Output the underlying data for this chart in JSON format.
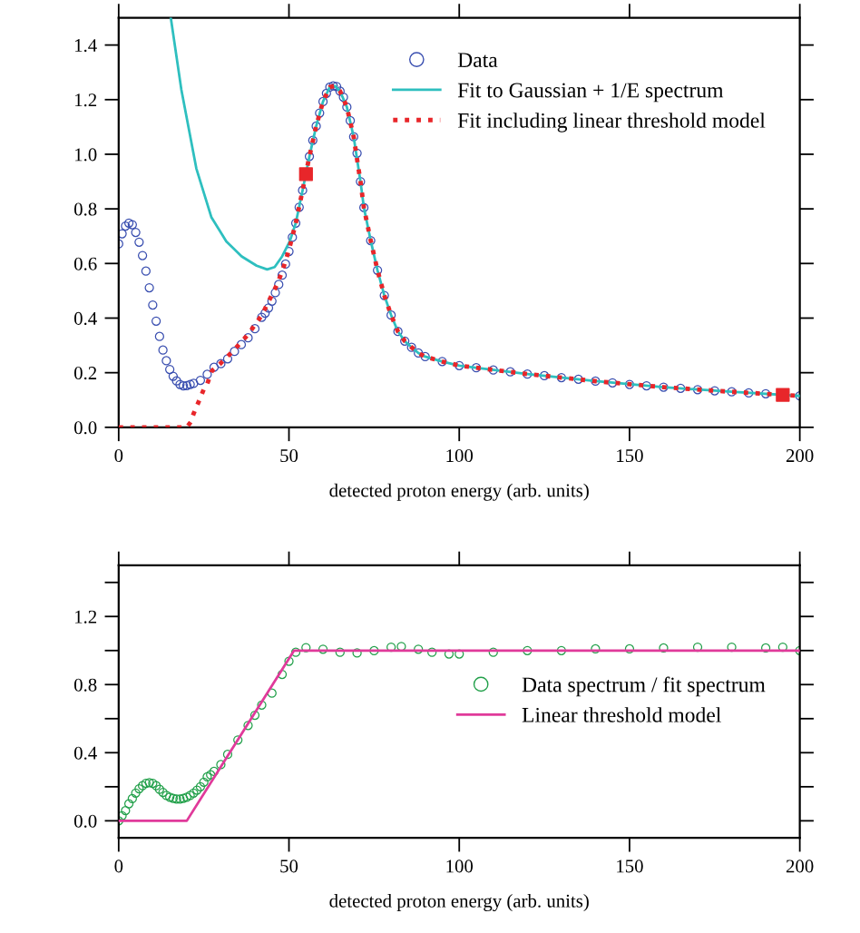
{
  "chart_data": [
    {
      "type": "line",
      "xlabel": "detected proton energy (arb. units)",
      "xlim": [
        0,
        200
      ],
      "xticks": [
        0,
        50,
        100,
        150,
        200
      ],
      "ylim": [
        0,
        1.5
      ],
      "yticks": [
        {
          "value": 0,
          "label": "0.0"
        },
        0.2,
        0.4,
        0.6,
        0.8,
        {
          "value": 1,
          "label": "1.0"
        },
        1.2,
        1.4
      ],
      "legend": "top right",
      "grid": false,
      "series": [
        {
          "name": "Data",
          "type": "scatter",
          "marker": "circle",
          "color": "#3a4fb0",
          "x": [
            0,
            1,
            2,
            3,
            4,
            5,
            6,
            7,
            8,
            9,
            10,
            11,
            12,
            13,
            14,
            15,
            16,
            17,
            18,
            19,
            20,
            21,
            22,
            24,
            26,
            28,
            30,
            32,
            34,
            36,
            38,
            40,
            42,
            43,
            44,
            45,
            46,
            47,
            48,
            49,
            50,
            51,
            52,
            53,
            54,
            55,
            56,
            57,
            58,
            59,
            60,
            61,
            62,
            63,
            64,
            65,
            66,
            67,
            68,
            69,
            70,
            71,
            72,
            74,
            76,
            78,
            80,
            82,
            84,
            86,
            88,
            90,
            95,
            100,
            105,
            110,
            115,
            120,
            125,
            130,
            135,
            140,
            145,
            150,
            155,
            160,
            165,
            170,
            175,
            180,
            185,
            190,
            195,
            200
          ],
          "values": [
            0.672,
            0.709,
            0.737,
            0.748,
            0.742,
            0.714,
            0.678,
            0.629,
            0.572,
            0.511,
            0.448,
            0.389,
            0.333,
            0.283,
            0.244,
            0.212,
            0.187,
            0.17,
            0.157,
            0.152,
            0.153,
            0.157,
            0.161,
            0.172,
            0.194,
            0.22,
            0.233,
            0.251,
            0.278,
            0.303,
            0.328,
            0.361,
            0.403,
            0.418,
            0.437,
            0.462,
            0.493,
            0.523,
            0.557,
            0.598,
            0.644,
            0.696,
            0.748,
            0.806,
            0.868,
            null,
            0.992,
            1.051,
            1.103,
            1.151,
            1.193,
            1.223,
            1.246,
            1.25,
            1.248,
            1.231,
            1.209,
            1.173,
            1.123,
            1.064,
            1.004,
            0.9,
            0.805,
            0.684,
            0.575,
            0.483,
            0.411,
            0.351,
            0.316,
            0.293,
            0.272,
            0.259,
            0.241,
            0.226,
            0.218,
            0.21,
            0.203,
            0.195,
            0.189,
            0.182,
            0.176,
            0.169,
            0.163,
            0.157,
            0.152,
            0.147,
            0.143,
            0.138,
            0.134,
            0.13,
            0.126,
            0.123,
            null,
            0.115
          ]
        },
        {
          "name": "Fit to Gaussian + 1/E spectrum",
          "line_style": "solid",
          "color": "#2ebfbf",
          "x": [
            15.3,
            18.4,
            22.8,
            27.2,
            31.6,
            36.1,
            40.5,
            43.6,
            45.8,
            48,
            50.2,
            52,
            54,
            56,
            58,
            60,
            62,
            63.5,
            65,
            67,
            69,
            71,
            72,
            74,
            76,
            78,
            80,
            82,
            84,
            86,
            88,
            90,
            95,
            100,
            120,
            140,
            160,
            180,
            200
          ],
          "values": [
            1.5,
            1.237,
            0.948,
            0.77,
            0.681,
            0.626,
            0.592,
            0.578,
            0.587,
            0.626,
            0.68,
            0.748,
            0.868,
            0.992,
            1.103,
            1.193,
            1.246,
            1.25,
            1.231,
            1.173,
            1.064,
            0.9,
            0.805,
            0.684,
            0.575,
            0.483,
            0.411,
            0.351,
            0.316,
            0.293,
            0.272,
            0.259,
            0.241,
            0.226,
            0.195,
            0.169,
            0.147,
            0.13,
            0.115
          ]
        },
        {
          "name": "Fit including linear threshold model",
          "line_style": "dotted",
          "color": "#e8262a",
          "x": [
            0,
            20,
            21.2,
            22,
            23.8,
            25,
            26,
            27.4,
            30,
            34,
            38,
            42,
            46,
            48,
            50,
            52,
            54,
            56,
            58,
            60,
            62,
            63.5,
            65,
            67,
            69,
            71,
            72,
            74,
            76,
            78,
            80,
            82,
            84,
            86,
            88,
            90,
            95,
            100,
            120,
            140,
            160,
            180,
            200
          ],
          "values": [
            0,
            0,
            0.02,
            0.05,
            0.103,
            0.14,
            0.159,
            0.207,
            0.235,
            0.285,
            0.34,
            0.41,
            0.51,
            0.57,
            0.65,
            0.748,
            0.868,
            0.992,
            1.103,
            1.193,
            1.246,
            1.25,
            1.231,
            1.173,
            1.064,
            0.9,
            0.805,
            0.684,
            0.575,
            0.483,
            0.411,
            0.351,
            0.316,
            0.293,
            0.272,
            0.259,
            0.241,
            0.226,
            0.195,
            0.169,
            0.147,
            0.13,
            0.115
          ]
        },
        {
          "type": "scatter",
          "marker": "square",
          "color": "#e8262a",
          "x": [
            55,
            195
          ],
          "values": [
            0.927,
            0.119
          ]
        }
      ]
    },
    {
      "type": "line",
      "xlabel": "detected proton energy (arb. units)",
      "xlim": [
        0,
        200
      ],
      "xticks": [
        0,
        50,
        100,
        150,
        200
      ],
      "ylim": [
        -0.1,
        1.5
      ],
      "yticks": [
        {
          "value": 0,
          "label": "0.0"
        },
        {
          "value": 0.2,
          "label": null
        },
        0.4,
        {
          "value": 0.6,
          "label": null
        },
        0.8,
        {
          "value": 1,
          "label": null
        },
        1.2,
        {
          "value": 1.4,
          "label": null
        }
      ],
      "legend": "right",
      "grid": false,
      "series": [
        {
          "name": "Data spectrum / fit spectrum",
          "type": "scatter",
          "marker": "circle",
          "color": "#22a04a",
          "x": [
            0,
            1,
            2,
            3,
            4,
            5,
            6,
            7,
            8,
            9,
            10,
            11,
            12,
            13,
            14,
            15,
            16,
            17,
            18,
            19,
            20,
            21,
            22,
            23,
            24,
            25,
            26,
            27,
            28,
            30,
            32,
            35,
            38,
            40,
            42,
            45,
            48,
            50,
            52,
            55,
            60,
            65,
            70,
            75,
            80,
            83,
            88,
            92,
            97,
            100,
            110,
            120,
            130,
            140,
            150,
            160,
            170,
            180,
            190,
            195,
            200
          ],
          "values": [
            0,
            0.03,
            0.06,
            0.1,
            0.13,
            0.163,
            0.188,
            0.206,
            0.22,
            0.224,
            0.22,
            0.206,
            0.185,
            0.167,
            0.149,
            0.139,
            0.132,
            0.128,
            0.128,
            0.132,
            0.139,
            0.149,
            0.163,
            0.18,
            0.2,
            0.227,
            0.258,
            0.27,
            0.29,
            0.33,
            0.39,
            0.475,
            0.56,
            0.62,
            0.68,
            0.75,
            0.86,
            0.937,
            0.99,
            1.017,
            1.008,
            0.99,
            0.986,
            0.999,
            1.02,
            1.024,
            1.008,
            0.99,
            0.98,
            0.98,
            0.99,
            1.0,
            1.0,
            1.01,
            1.01,
            1.015,
            1.02,
            1.02,
            1.015,
            1.02,
            1.0
          ]
        },
        {
          "name": "Linear threshold model",
          "line_style": "solid",
          "color": "#e03a9a",
          "x": [
            0,
            20,
            51.5,
            200
          ],
          "values": [
            0,
            0,
            1,
            1
          ]
        }
      ]
    }
  ]
}
